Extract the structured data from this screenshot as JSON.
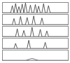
{
  "chart_data": [
    {
      "type": "line",
      "xlim": [
        0,
        40
      ],
      "ylim": [
        0,
        100
      ],
      "tick_labels": false,
      "color": "#333333",
      "x": [
        0,
        1,
        2,
        3,
        4,
        5,
        6,
        7,
        8,
        9,
        10,
        11,
        12,
        13,
        14,
        15,
        16,
        17,
        18,
        19,
        20,
        21,
        22,
        23,
        24,
        25,
        26,
        27,
        28,
        29,
        30,
        31,
        32,
        33,
        34,
        35,
        36,
        37,
        38,
        39,
        40
      ],
      "values": [
        2,
        2,
        2,
        2,
        2,
        2,
        70,
        2,
        90,
        2,
        60,
        2,
        85,
        2,
        95,
        2,
        2,
        75,
        2,
        2,
        80,
        2,
        65,
        2,
        2,
        88,
        2,
        2,
        70,
        2,
        2,
        2,
        2,
        2,
        2,
        2,
        2,
        2,
        2,
        2,
        2
      ]
    },
    {
      "type": "line",
      "xlim": [
        0,
        40
      ],
      "ylim": [
        0,
        100
      ],
      "tick_labels": false,
      "color": "#333333",
      "x": [
        0,
        1,
        2,
        3,
        4,
        5,
        6,
        7,
        8,
        9,
        10,
        11,
        12,
        13,
        14,
        15,
        16,
        17,
        18,
        19,
        20,
        21,
        22,
        23,
        24,
        25,
        26,
        27,
        28,
        29,
        30,
        31,
        32,
        33,
        34,
        35,
        36,
        37,
        38,
        39,
        40
      ],
      "values": [
        2,
        2,
        2,
        2,
        2,
        2,
        2,
        60,
        2,
        2,
        2,
        80,
        2,
        2,
        2,
        70,
        2,
        2,
        2,
        85,
        2,
        2,
        2,
        2,
        65,
        2,
        2,
        2,
        2,
        2,
        2,
        2,
        2,
        2,
        2,
        2,
        2,
        2,
        2,
        2,
        2
      ]
    },
    {
      "type": "line",
      "xlim": [
        0,
        40
      ],
      "ylim": [
        0,
        100
      ],
      "tick_labels": false,
      "color": "#333333",
      "x": [
        0,
        1,
        2,
        3,
        4,
        5,
        6,
        7,
        8,
        9,
        10,
        11,
        12,
        13,
        14,
        15,
        16,
        17,
        18,
        19,
        20,
        21,
        22,
        23,
        24,
        25,
        26,
        27,
        28,
        29,
        30,
        31,
        32,
        33,
        34,
        35,
        36,
        37,
        38,
        39,
        40
      ],
      "values": [
        2,
        2,
        2,
        2,
        2,
        2,
        2,
        2,
        2,
        75,
        2,
        2,
        2,
        60,
        2,
        2,
        2,
        2,
        90,
        2,
        2,
        2,
        2,
        70,
        2,
        2,
        2,
        55,
        2,
        2,
        2,
        2,
        2,
        2,
        2,
        2,
        2,
        2,
        2,
        2,
        2
      ]
    },
    {
      "type": "line",
      "xlim": [
        0,
        40
      ],
      "ylim": [
        0,
        100
      ],
      "tick_labels": false,
      "color": "#333333",
      "x": [
        0,
        1,
        2,
        3,
        4,
        5,
        6,
        7,
        8,
        9,
        10,
        11,
        12,
        13,
        14,
        15,
        16,
        17,
        18,
        19,
        20,
        21,
        22,
        23,
        24,
        25,
        26,
        27,
        28,
        29,
        30,
        31,
        32,
        33,
        34,
        35,
        36,
        37,
        38,
        39,
        40
      ],
      "values": [
        2,
        2,
        2,
        2,
        2,
        2,
        2,
        2,
        50,
        2,
        2,
        2,
        2,
        2,
        2,
        2,
        80,
        2,
        2,
        2,
        2,
        2,
        2,
        2,
        2,
        2,
        60,
        2,
        2,
        2,
        2,
        2,
        2,
        2,
        2,
        2,
        2,
        2,
        2,
        2,
        2
      ]
    },
    {
      "type": "line",
      "xlim": [
        0,
        40
      ],
      "ylim": [
        0,
        100
      ],
      "tick_labels": false,
      "color": "#333333",
      "x": [
        0,
        1,
        2,
        3,
        4,
        5,
        6,
        7,
        8,
        9,
        10,
        11,
        12,
        13,
        14,
        15,
        16,
        17,
        18,
        19,
        20,
        21,
        22,
        23,
        24,
        25,
        26,
        27,
        28,
        29,
        30,
        31,
        32,
        33,
        34,
        35,
        36,
        37,
        38,
        39,
        40
      ],
      "values": [
        2,
        2,
        2,
        2,
        2,
        2,
        2,
        2,
        2,
        2,
        2,
        2,
        2,
        2,
        2,
        5,
        10,
        15,
        18,
        15,
        10,
        5,
        2,
        2,
        2,
        2,
        2,
        2,
        2,
        2,
        2,
        2,
        2,
        2,
        2,
        2,
        2,
        2,
        2,
        2,
        2
      ]
    }
  ]
}
